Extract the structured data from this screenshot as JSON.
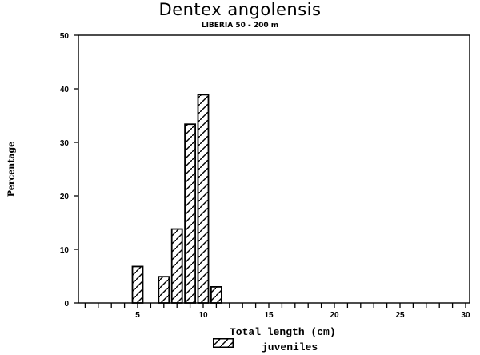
{
  "chart_data": {
    "type": "bar",
    "title": "Dentex angolensis",
    "subtitle": "LIBERIA 50 - 200 m",
    "xlabel": "Total length (cm)",
    "ylabel": "Percentage",
    "xlim": [
      0,
      30
    ],
    "ylim": [
      0,
      50
    ],
    "xticks_major": [
      5,
      10,
      15,
      20,
      25,
      30
    ],
    "yticks": [
      0,
      10,
      20,
      30,
      40,
      50
    ],
    "grid": false,
    "legend": [
      {
        "label": "juveniles",
        "pattern": "diagonal-hatch"
      }
    ],
    "legend_position": "bottom-center",
    "x": [
      5,
      7,
      8,
      9,
      10,
      11
    ],
    "values": [
      6.8,
      4.9,
      13.8,
      33.4,
      38.9,
      3.0
    ]
  }
}
